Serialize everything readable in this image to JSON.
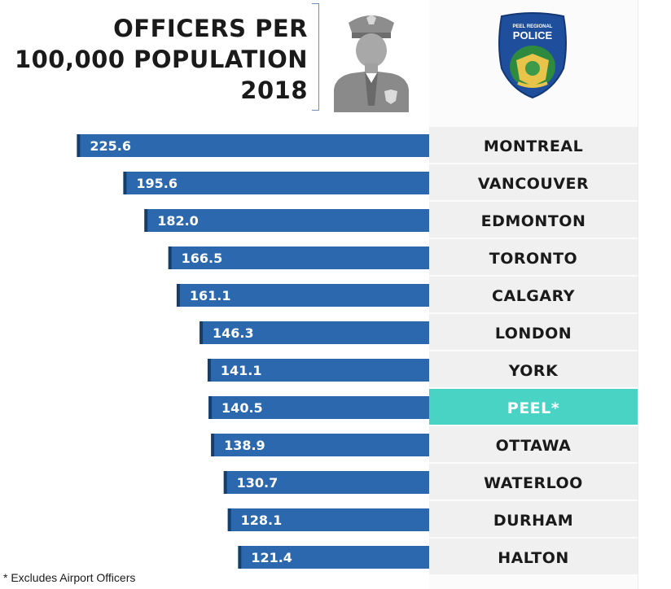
{
  "header": {
    "title_line1": "OFFICERS PER",
    "title_line2": "100,000 POPULATION",
    "title_line3": "2018"
  },
  "logo": {
    "line1": "PEEL REGIONAL",
    "line2": "POLICE"
  },
  "footnote": "* Excludes Airport Officers",
  "colors": {
    "bar": "#2c68ad",
    "bar_edge": "#163e6d",
    "label_bg": "#f0f0f0",
    "highlight_bg": "#49d3c4",
    "highlight_text": "#ffffff",
    "label_text": "#1a1a1a"
  },
  "chart_data": {
    "type": "bar",
    "orientation": "horizontal",
    "categories": [
      "MONTREAL",
      "VANCOUVER",
      "EDMONTON",
      "TORONTO",
      "CALGARY",
      "LONDON",
      "YORK",
      "PEEL*",
      "OTTAWA",
      "WATERLOO",
      "DURHAM",
      "HALTON"
    ],
    "values": [
      225.6,
      195.6,
      182.0,
      166.5,
      161.1,
      146.3,
      141.1,
      140.5,
      138.9,
      130.7,
      128.1,
      121.4
    ],
    "value_labels": [
      "225.6",
      "195.6",
      "182.0",
      "166.5",
      "161.1",
      "146.3",
      "141.1",
      "140.5",
      "138.9",
      "130.7",
      "128.1",
      "121.4"
    ],
    "highlight": "PEEL*",
    "bar_direction": "right-to-left"
  }
}
